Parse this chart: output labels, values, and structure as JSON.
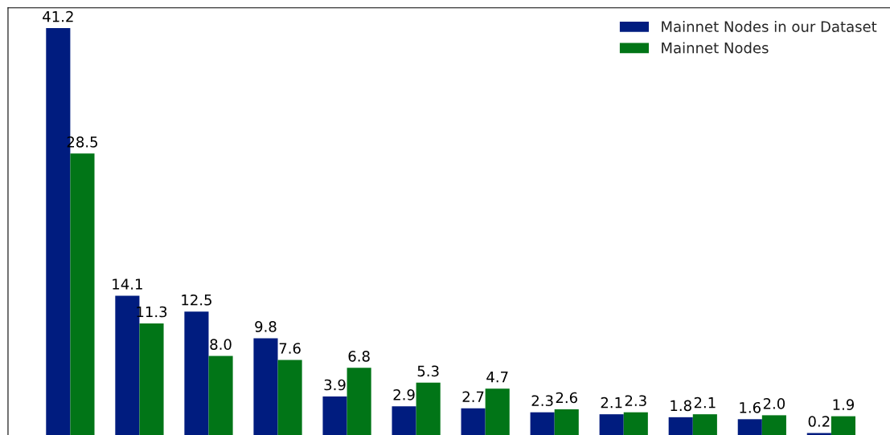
{
  "chart_data": {
    "type": "bar",
    "categories": [
      null,
      null,
      null,
      null,
      null,
      null,
      null,
      null,
      null,
      null,
      null,
      null
    ],
    "series": [
      {
        "name": "Mainnet Nodes in our Dataset",
        "color": "#001c7f",
        "values": [
          41.2,
          14.1,
          12.5,
          9.8,
          3.9,
          2.9,
          2.7,
          2.3,
          2.1,
          1.8,
          1.6,
          0.2
        ],
        "value_labels": [
          "41.2",
          "14.1",
          "12.5",
          "9.8",
          "3.9",
          "2.9",
          "2.7",
          "2.3",
          "2.1",
          "1.8",
          "1.6",
          "0.2"
        ]
      },
      {
        "name": "Mainnet Nodes",
        "color": "#017517",
        "values": [
          28.5,
          11.3,
          8.0,
          7.6,
          6.8,
          5.3,
          4.7,
          2.6,
          2.3,
          2.1,
          2.0,
          1.9
        ],
        "value_labels": [
          "28.5",
          "11.3",
          "8.0",
          "7.6",
          "6.8",
          "5.3",
          "4.7",
          "2.6",
          "2.3",
          "2.1",
          "2.0",
          "1.9"
        ]
      }
    ],
    "legend": "top right",
    "grid": false
  }
}
